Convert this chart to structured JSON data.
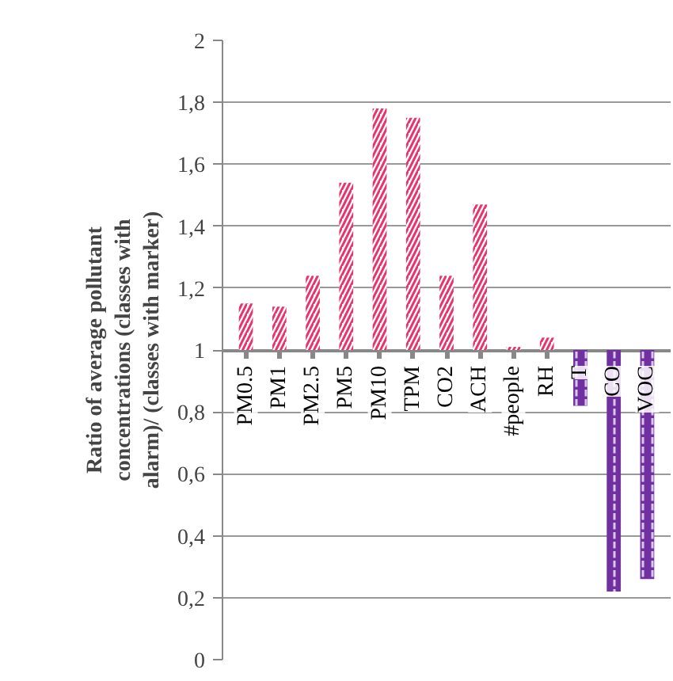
{
  "chart_data": {
    "type": "bar",
    "ylabel": "Ratio of average pollutant concentrations (classes with alarm)/ (classes with marker)",
    "categories": [
      "PM0.5",
      "PM1",
      "PM2.5",
      "PM5",
      "PM10",
      "TPM",
      "CO2",
      "ACH",
      "#people",
      "RH",
      "T",
      "CO",
      "VOC"
    ],
    "base": [
      1,
      1,
      1,
      1,
      1,
      1,
      1,
      1,
      1,
      1,
      1,
      1,
      1
    ],
    "values": [
      0.15,
      0.14,
      0.24,
      0.54,
      0.78,
      0.75,
      0.24,
      0.47,
      0.01,
      0.04,
      -0.18,
      -0.78,
      -0.74
    ],
    "colors": [
      "#e8336b",
      "#e8336b",
      "#e8336b",
      "#e8336b",
      "#e8336b",
      "#e8336b",
      "#e8336b",
      "#e8336b",
      "#e8336b",
      "#e8336b",
      "#7030a0",
      "#7030a0",
      "#7030a0"
    ],
    "ylim": [
      0,
      2
    ],
    "yticks": [
      0,
      {
        "value": 0.2,
        "label": "0,2"
      },
      {
        "value": 0.4,
        "label": "0,4"
      },
      {
        "value": 0.6,
        "label": "0,6"
      },
      {
        "value": 0.8,
        "label": "0,8"
      },
      1,
      {
        "value": 1.2,
        "label": "1,2"
      },
      {
        "value": 1.4,
        "label": "1,4"
      },
      {
        "value": 1.6,
        "label": "1,6"
      },
      {
        "value": 1.8,
        "label": "1,8"
      },
      2
    ],
    "grid": "y"
  }
}
